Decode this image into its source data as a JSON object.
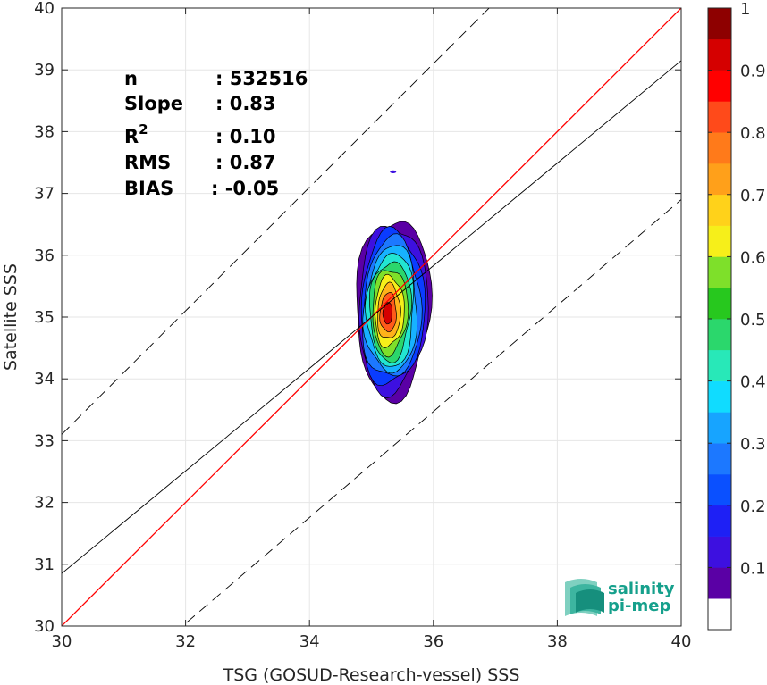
{
  "chart_data": {
    "type": "contour-scatter",
    "xlabel": "TSG (GOSUD-Research-vessel) SSS",
    "ylabel": "Satellite SSS",
    "xlim": [
      30,
      40
    ],
    "ylim": [
      30,
      40
    ],
    "x_ticks": [
      30,
      32,
      34,
      36,
      38,
      40
    ],
    "y_ticks": [
      30,
      31,
      32,
      33,
      34,
      35,
      36,
      37,
      38,
      39,
      40
    ],
    "grid": true,
    "lines": [
      {
        "kind": "identity",
        "color": "#ff0000",
        "dash": "solid",
        "points": [
          [
            30,
            30
          ],
          [
            40,
            40
          ]
        ]
      },
      {
        "kind": "regression",
        "color": "#000000",
        "dash": "solid",
        "points": [
          [
            30,
            30.85
          ],
          [
            40,
            39.15
          ]
        ]
      },
      {
        "kind": "upper-bound",
        "color": "#000000",
        "dash": "dashed",
        "points": [
          [
            30,
            33.1
          ],
          [
            41.1,
            44.2
          ]
        ]
      },
      {
        "kind": "lower-bound",
        "color": "#000000",
        "dash": "dashed",
        "points": [
          [
            31.6,
            29.7
          ],
          [
            40,
            36.9
          ]
        ]
      }
    ],
    "density_contours": {
      "center": [
        35.25,
        35.05
      ],
      "levels": [
        0.05,
        0.1,
        0.2,
        0.3,
        0.4,
        0.5,
        0.6,
        0.7,
        0.8,
        0.9
      ],
      "colors": [
        "#5a00a5",
        "#3d10e0",
        "#0a3cff",
        "#1c78ff",
        "#17b2ff",
        "#22e6d2",
        "#2bd76c",
        "#7ee02a",
        "#f6ef1a",
        "#ffb21a",
        "#ff5a1a",
        "#d50000"
      ],
      "outer_extent_x": [
        34.75,
        35.95
      ],
      "outer_extent_y": [
        33.7,
        36.6
      ],
      "outlier": [
        35.35,
        37.35
      ]
    },
    "stats": [
      {
        "label": "n",
        "value": ": 532516"
      },
      {
        "label": "Slope",
        "value": ": 0.83"
      },
      {
        "label": "R",
        "sup": "2",
        "value": ": 0.10"
      },
      {
        "label": "RMS",
        "value": ": 0.87"
      },
      {
        "label": "BIAS",
        "value": ": -0.05"
      }
    ],
    "colorbar": {
      "range": [
        0,
        1
      ],
      "ticks": [
        0.1,
        0.2,
        0.3,
        0.4,
        0.5,
        0.6,
        0.7,
        0.8,
        0.9,
        1
      ],
      "tick_labels": [
        "0.1",
        "0.2",
        "0.3",
        "0.4",
        "0.5",
        "0.6",
        "0.7",
        "0.8",
        "0.9",
        "1"
      ],
      "colors": [
        "#ffffff",
        "#5a00a5",
        "#3d10e0",
        "#1e20f5",
        "#0a50ff",
        "#1c78ff",
        "#17a4ff",
        "#10dcff",
        "#28e8b8",
        "#2bd76c",
        "#27c81e",
        "#7ee02a",
        "#f6ef1a",
        "#ffd21a",
        "#ffa01a",
        "#ff7a1a",
        "#ff4a1a",
        "#ff0000",
        "#d50000",
        "#8e0000"
      ]
    }
  },
  "logo": {
    "line1": "salinity",
    "line2": "pi-mep",
    "color": "#16a08c"
  }
}
